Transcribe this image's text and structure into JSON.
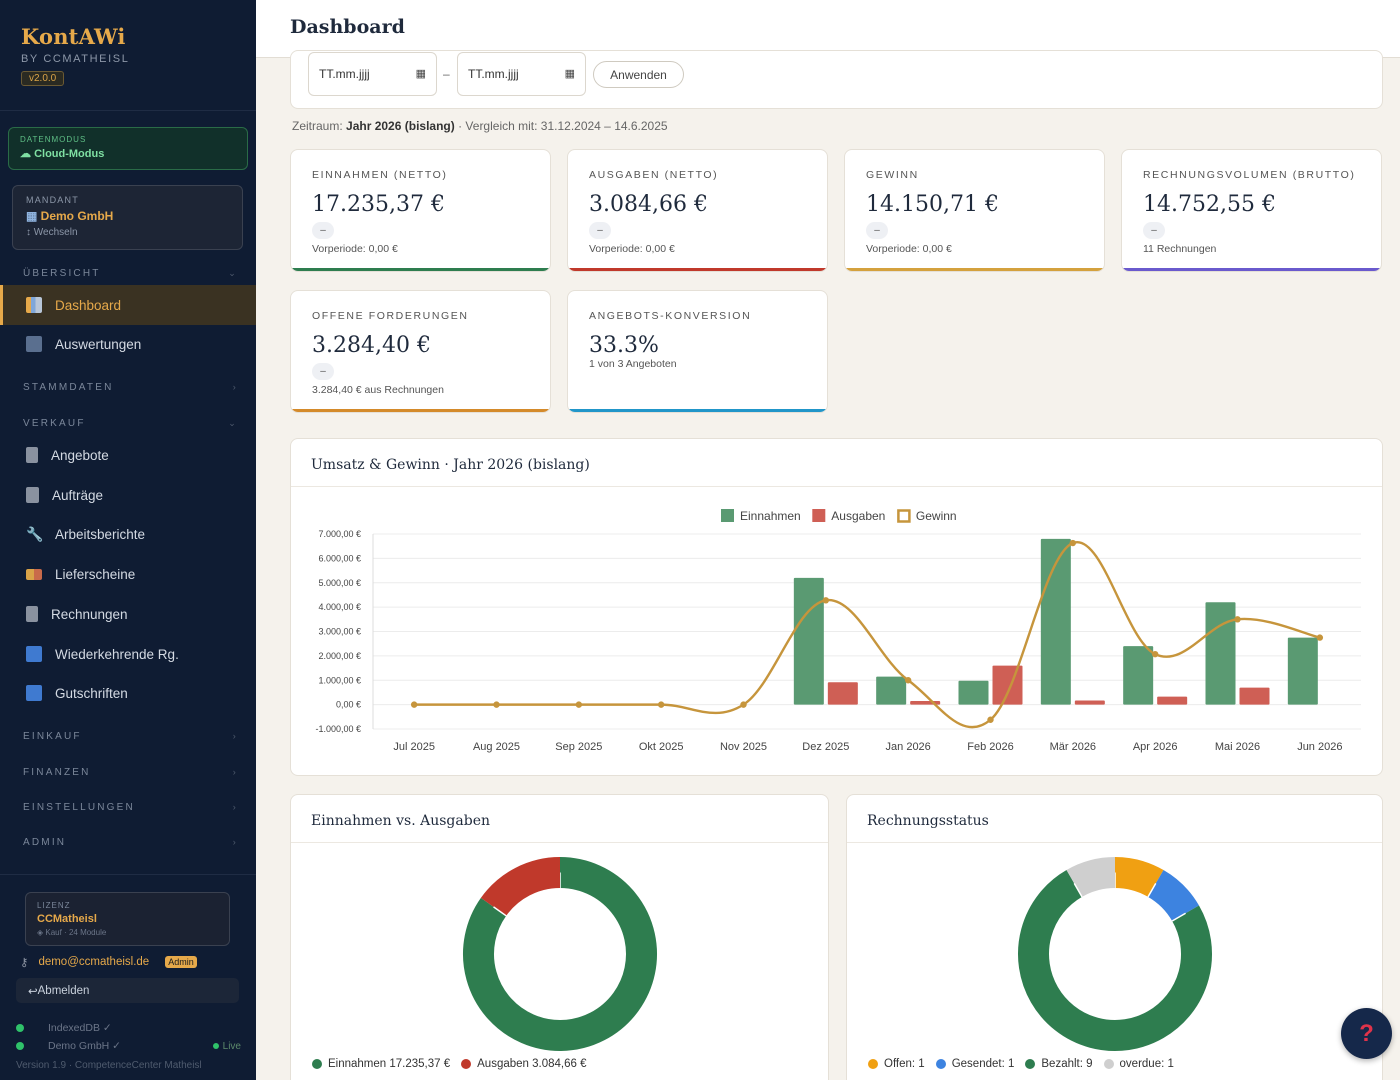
{
  "brand": {
    "name": "KontAWi",
    "by": "BY CCMATHEISL",
    "version": "v2.0.0"
  },
  "mode": {
    "label": "DATENMODUS",
    "value": "Cloud-Modus"
  },
  "mandant": {
    "label": "MANDANT",
    "value": "Demo GmbH",
    "switch": "Wechseln"
  },
  "sections": {
    "uebersicht": "ÜBERSICHT",
    "stammdaten": "STAMMDATEN",
    "verkauf": "VERKAUF",
    "einkauf": "EINKAUF",
    "finanzen": "FINANZEN",
    "einstellungen": "EINSTELLUNGEN",
    "admin": "ADMIN"
  },
  "nav": {
    "dashboard": "Dashboard",
    "auswertungen": "Auswertungen",
    "angebote": "Angebote",
    "auftraege": "Aufträge",
    "arbeitsberichte": "Arbeitsberichte",
    "lieferscheine": "Lieferscheine",
    "rechnungen": "Rechnungen",
    "wiederkehrende": "Wiederkehrende Rg.",
    "gutschriften": "Gutschriften"
  },
  "license": {
    "label": "LIZENZ",
    "value": "CCMatheisl",
    "sub": "Kauf · 24 Module"
  },
  "user": {
    "email": "demo@ccmatheisl.de",
    "role": "Admin",
    "logout": "Abmelden"
  },
  "status": {
    "db": "IndexedDB ✓",
    "tenant": "Demo GmbH ✓",
    "live": "Live"
  },
  "footer_version": "Version 1.9 · CompetenceCenter Matheisl",
  "page_title": "Dashboard",
  "filter": {
    "date_from_placeholder": "TT.mm.jjjj",
    "date_to_placeholder": "TT.mm.jjjj",
    "separator": "–",
    "apply": "Anwenden"
  },
  "zeitraum": {
    "prefix": "Zeitraum:",
    "period": "Jahr 2026 (bislang)",
    "compare": "· Vergleich mit: 31.12.2024 – 14.6.2025"
  },
  "kpis": [
    {
      "label": "EINNAHMEN (NETTO)",
      "value": "17.235,37 €",
      "pill": "–",
      "sub": "Vorperiode: 0,00 €",
      "color": "#2e7d4f"
    },
    {
      "label": "AUSGABEN (NETTO)",
      "value": "3.084,66 €",
      "pill": "–",
      "sub": "Vorperiode: 0,00 €",
      "color": "#c0392b"
    },
    {
      "label": "GEWINN",
      "value": "14.150,71 €",
      "pill": "–",
      "sub": "Vorperiode: 0,00 €",
      "color": "#d4a13d"
    },
    {
      "label": "RECHNUNGSVOLUMEN (BRUTTO)",
      "value": "14.752,55 €",
      "pill": "–",
      "sub": "11 Rechnungen",
      "color": "#6a5acd"
    },
    {
      "label": "OFFENE FORDERUNGEN",
      "value": "3.284,40 €",
      "pill": "–",
      "sub": "3.284,40 € aus Rechnungen",
      "color": "#d48a2a"
    },
    {
      "label": "ANGEBOTS-KONVERSION",
      "value": "33.3%",
      "pill": "",
      "sub": "1 von 3 Angeboten",
      "color": "#2196c9"
    }
  ],
  "cards": {
    "umsatz_title": "Umsatz & Gewinn · Jahr 2026 (bislang)",
    "einaus_title": "Einnahmen vs. Ausgaben",
    "status_title": "Rechnungsstatus"
  },
  "chart_data": [
    {
      "type": "bar",
      "title": "Umsatz & Gewinn · Jahr 2026 (bislang)",
      "categories": [
        "Jul 2025",
        "Aug 2025",
        "Sep 2025",
        "Okt 2025",
        "Nov 2025",
        "Dez 2025",
        "Jan 2026",
        "Feb 2026",
        "Mär 2026",
        "Apr 2026",
        "Mai 2026",
        "Jun 2026"
      ],
      "series": [
        {
          "name": "Einnahmen",
          "type": "bar",
          "color": "#5a9a72",
          "values": [
            0,
            0,
            0,
            0,
            0,
            5200,
            1150,
            980,
            6800,
            2400,
            4200,
            2750
          ]
        },
        {
          "name": "Ausgaben",
          "type": "bar",
          "color": "#cf5f55",
          "values": [
            0,
            0,
            0,
            0,
            0,
            920,
            150,
            1600,
            170,
            330,
            700,
            0
          ]
        },
        {
          "name": "Gewinn",
          "type": "line",
          "color": "#c6953c",
          "values": [
            0,
            0,
            0,
            0,
            0,
            4280,
            1000,
            -620,
            6630,
            2070,
            3500,
            2750
          ]
        }
      ],
      "yticks": [
        "7.000,00 €",
        "6.000,00 €",
        "5.000,00 €",
        "4.000,00 €",
        "3.000,00 €",
        "2.000,00 €",
        "1.000,00 €",
        "0,00 €",
        "-1.000,00 €"
      ],
      "ylim": [
        -1000,
        7000
      ],
      "legend": "top-center",
      "grid": true
    },
    {
      "type": "pie",
      "title": "Einnahmen vs. Ausgaben",
      "labels": [
        "Einnahmen",
        "Ausgaben"
      ],
      "legend_labels": [
        "Einnahmen 17.235,37 €",
        "Ausgaben 3.084,66 €"
      ],
      "values": [
        17235.37,
        3084.66
      ],
      "colors": [
        "#2e7d4f",
        "#c0392b"
      ]
    },
    {
      "type": "pie",
      "title": "Rechnungsstatus",
      "labels": [
        "Offen",
        "Gesendet",
        "Bezahlt",
        "overdue"
      ],
      "legend_labels": [
        "Offen: 1",
        "Gesendet: 1",
        "Bezahlt: 9",
        "overdue: 1"
      ],
      "values": [
        1,
        1,
        9,
        1
      ],
      "colors": [
        "#f0a012",
        "#3d83e0",
        "#2e7d4f",
        "#cfcfcf"
      ]
    }
  ]
}
